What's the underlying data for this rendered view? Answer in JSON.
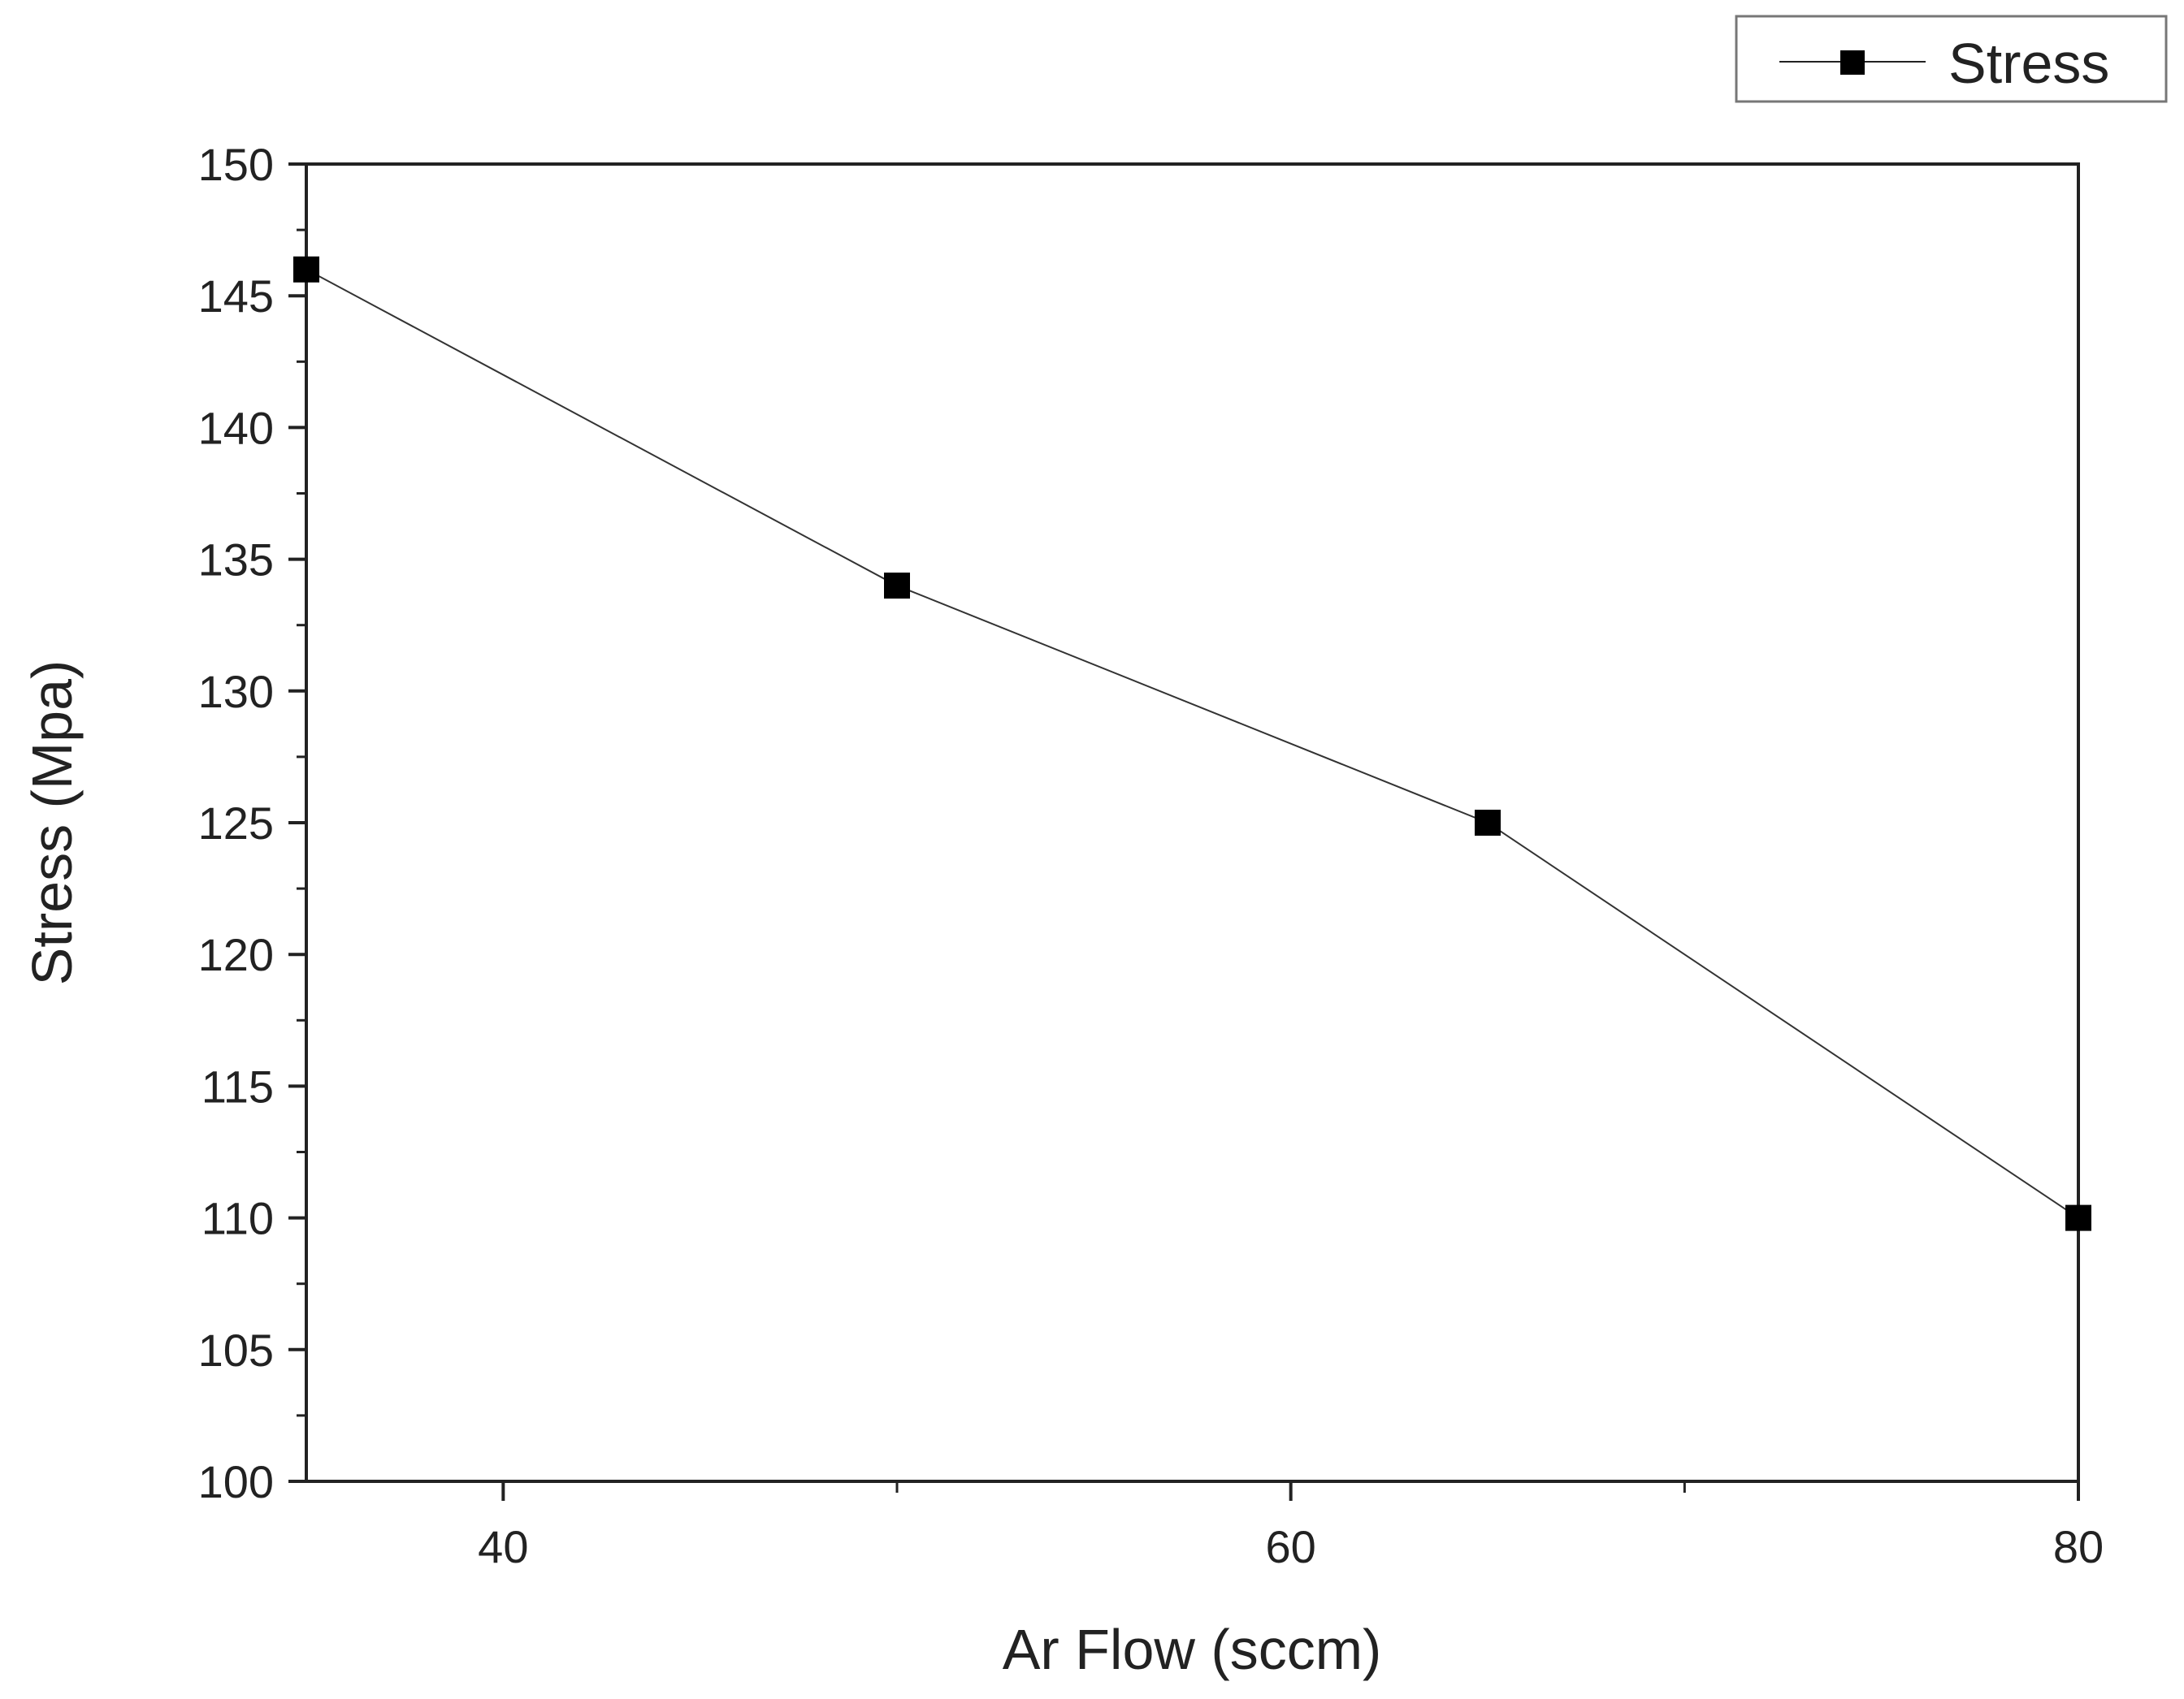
{
  "chart_data": {
    "type": "line",
    "title": "",
    "xlabel": "Ar Flow (sccm)",
    "ylabel": "Stress (Mpa)",
    "xlim": [
      35,
      80
    ],
    "ylim": [
      100,
      150
    ],
    "x_ticks": [
      40,
      60,
      80
    ],
    "x_minor_ticks": [
      50,
      70
    ],
    "y_ticks": [
      100,
      105,
      110,
      115,
      120,
      125,
      130,
      135,
      140,
      145,
      150
    ],
    "grid": false,
    "legend_position": "top-right",
    "series": [
      {
        "name": "Stress",
        "marker": "square",
        "color": "#000000",
        "x": [
          35,
          50,
          65,
          80
        ],
        "y": [
          146,
          134,
          125,
          110
        ]
      }
    ]
  }
}
